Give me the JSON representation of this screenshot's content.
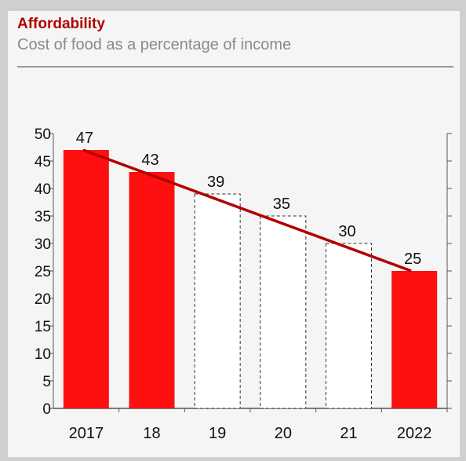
{
  "header": {
    "title": "Affordability",
    "subtitle": "Cost of food as a percentage of income"
  },
  "colors": {
    "bar_actual": "#ff1010",
    "bar_forecast_border": "#333333",
    "trend_line": "#b30000",
    "title": "#b30000"
  },
  "chart_data": {
    "type": "bar",
    "title": "Affordability",
    "subtitle": "Cost of food as a percentage of income",
    "categories": [
      "2017",
      "18",
      "19",
      "20",
      "21",
      "2022"
    ],
    "values": [
      47,
      43,
      39,
      35,
      30,
      25
    ],
    "styles": [
      "solid",
      "solid",
      "dashed",
      "dashed",
      "dashed",
      "solid"
    ],
    "trend_line": {
      "x_from": "2017",
      "y_from": 47,
      "x_to": "2022",
      "y_to": 25
    },
    "ylim": [
      0,
      50
    ],
    "yticks": [
      0,
      5,
      10,
      15,
      20,
      25,
      30,
      35,
      40,
      45,
      50
    ],
    "xlabel": "",
    "ylabel": "",
    "grid": false
  }
}
